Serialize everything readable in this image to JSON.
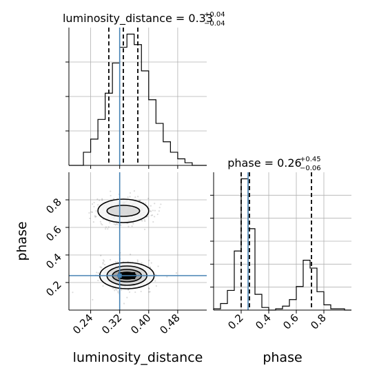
{
  "chart_data": [
    {
      "type": "histogram",
      "panel": "luminosity_distance marginal",
      "title": {
        "main": "luminosity_distance = 0.33",
        "sup": "+0.04",
        "sub": "−0.04"
      },
      "xlim": [
        0.18,
        0.56
      ],
      "x_ticks": [
        0.24,
        0.32,
        0.4,
        0.48
      ],
      "bins": [
        0.18,
        0.2,
        0.22,
        0.24,
        0.26,
        0.28,
        0.3,
        0.32,
        0.34,
        0.36,
        0.38,
        0.4,
        0.42,
        0.44,
        0.46,
        0.48,
        0.5,
        0.52,
        0.54,
        0.56
      ],
      "counts": [
        0,
        0,
        0.1,
        0.2,
        0.35,
        0.55,
        0.78,
        0.9,
        1.0,
        0.92,
        0.72,
        0.5,
        0.32,
        0.18,
        0.1,
        0.05,
        0.02,
        0,
        0
      ],
      "quantiles": [
        0.29,
        0.33,
        0.37
      ],
      "truth": 0.32,
      "grid": true
    },
    {
      "type": "histogram",
      "panel": "phase marginal",
      "title": {
        "main": "phase = 0.26",
        "sup": "+0.45",
        "sub": "−0.06"
      },
      "xlim": [
        0.0,
        1.0
      ],
      "x_ticks": [
        0.2,
        0.4,
        0.6,
        0.8
      ],
      "xlabel": "phase",
      "bins": [
        0.0,
        0.05,
        0.1,
        0.15,
        0.2,
        0.25,
        0.3,
        0.35,
        0.4,
        0.45,
        0.5,
        0.55,
        0.6,
        0.65,
        0.7,
        0.75,
        0.8,
        0.85,
        0.9,
        0.95,
        1.0
      ],
      "counts": [
        0.01,
        0.05,
        0.15,
        0.45,
        1.0,
        0.62,
        0.12,
        0.02,
        0,
        0.01,
        0.03,
        0.08,
        0.18,
        0.38,
        0.32,
        0.14,
        0.04,
        0.01,
        0.01,
        0
      ],
      "quantiles": [
        0.2,
        0.26,
        0.71
      ],
      "truth": 0.25,
      "grid": true
    },
    {
      "type": "scatter",
      "panel": "phase vs luminosity_distance",
      "xlim": [
        0.18,
        0.56
      ],
      "ylim": [
        0.0,
        1.0
      ],
      "x_ticks": [
        0.24,
        0.32,
        0.4,
        0.48
      ],
      "y_ticks": [
        0.2,
        0.4,
        0.6,
        0.8
      ],
      "xlabel": "luminosity_distance",
      "ylabel": "phase",
      "truth": {
        "x": 0.32,
        "y": 0.25
      },
      "clusters": [
        {
          "center": [
            0.34,
            0.25
          ],
          "spread": [
            0.035,
            0.05
          ],
          "points": 520
        },
        {
          "center": [
            0.33,
            0.72
          ],
          "spread": [
            0.038,
            0.05
          ],
          "points": 380
        }
      ],
      "contours": [
        {
          "center": [
            0.34,
            0.25
          ],
          "levels": [
            [
              0.075,
              0.095
            ],
            [
              0.055,
              0.07
            ],
            [
              0.04,
              0.045
            ],
            [
              0.025,
              0.025
            ]
          ]
        },
        {
          "center": [
            0.33,
            0.72
          ],
          "levels": [
            [
              0.07,
              0.085
            ],
            [
              0.045,
              0.04
            ]
          ]
        }
      ],
      "grid": true
    }
  ],
  "colors": {
    "truth": "#4682b4",
    "hist": "#000000",
    "grid": "#b0b0b0",
    "density": "#000000"
  }
}
